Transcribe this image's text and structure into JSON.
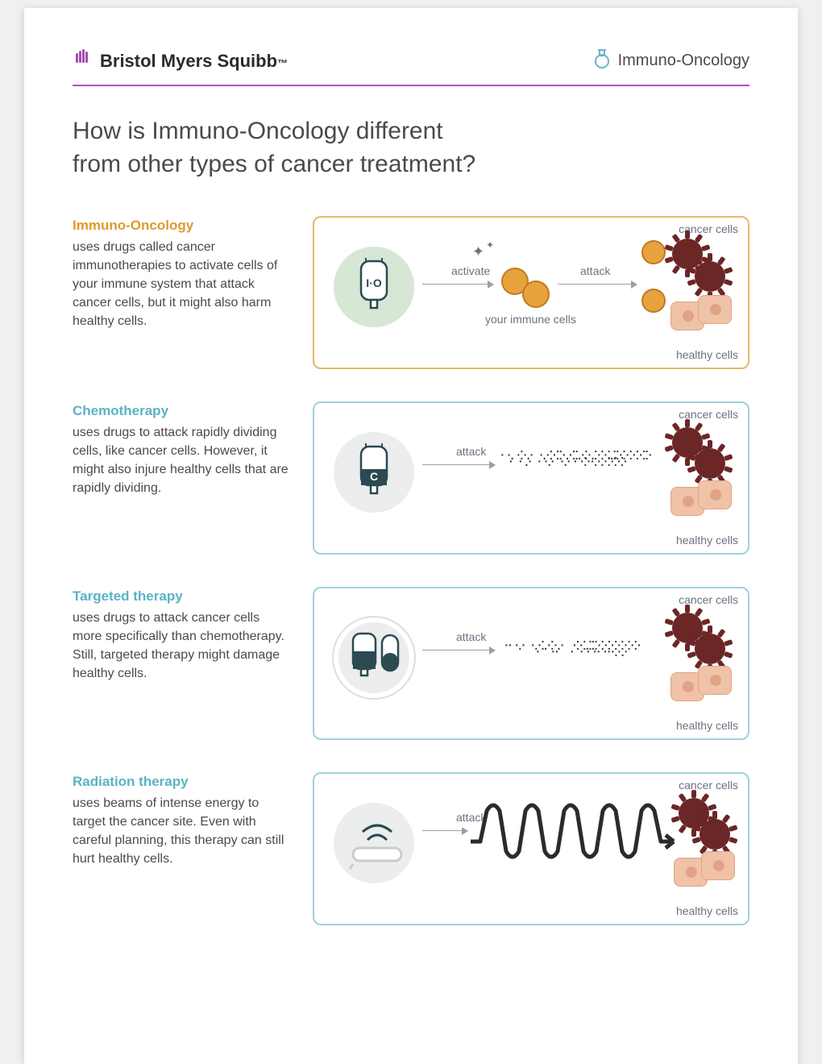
{
  "colors": {
    "header_rule": "#b84fc4",
    "title_text": "#4a4a4a",
    "body_text": "#4a4a4a",
    "caption_text": "#6b7280",
    "arrow": "#9aa0a6",
    "immune_fill": "#e6a23c",
    "immune_stroke": "#c17a1f",
    "cancer_fill": "#6b2626",
    "healthy_fill": "#f0c2a8",
    "healthy_stroke": "#e0a484",
    "dots": "#3a3a3a",
    "wave": "#2b2b2b",
    "io_circle_bg": "#d7e6d5",
    "grey_circle_bg": "#eceded",
    "flask_stroke": "#6fb3c9",
    "bms_hand": "#a44fb0",
    "bag_stroke": "#2b4a52"
  },
  "header": {
    "brand_left": "Bristol Myers Squibb",
    "brand_left_tm": "™",
    "brand_right": "Immuno-Oncology"
  },
  "title_line1": "How is Immuno-Oncology different",
  "title_line2": "from other types of cancer treatment?",
  "captions": {
    "cancer_cells": "cancer cells",
    "healthy_cells": "healthy cells",
    "your_immune_cells": "your immune cells",
    "activate": "activate",
    "attack": "attack"
  },
  "sections": [
    {
      "id": "immuno-oncology",
      "label": "Immuno-Oncology",
      "label_color": "#e09a2e",
      "border_color": "#e8b766",
      "desc": "uses drugs called cancer immunotherapies to activate cells of your immune system that attack cancer cells, but it might also harm healthy cells.",
      "iv_label": "I·O",
      "diagram_type": "io"
    },
    {
      "id": "chemotherapy",
      "label": "Chemotherapy",
      "label_color": "#5ab3c4",
      "border_color": "#9fd1db",
      "desc": "uses drugs to attack rapidly dividing cells, like cancer cells. However, it might also injure healthy cells that are rapidly dividing.",
      "iv_label": "C",
      "diagram_type": "chemo"
    },
    {
      "id": "targeted-therapy",
      "label": "Targeted therapy",
      "label_color": "#5ab3c4",
      "border_color": "#9fd1db",
      "desc": "uses drugs to attack cancer cells more specifically than chemotherapy. Still, targeted therapy might damage healthy cells.",
      "iv_label": "",
      "diagram_type": "targeted"
    },
    {
      "id": "radiation-therapy",
      "label": "Radiation therapy",
      "label_color": "#5ab3c4",
      "border_color": "#9fd1db",
      "desc": "uses beams of intense energy to target the cancer site. Even with careful planning, this therapy can still hurt healthy cells.",
      "iv_label": "",
      "diagram_type": "radiation"
    }
  ]
}
